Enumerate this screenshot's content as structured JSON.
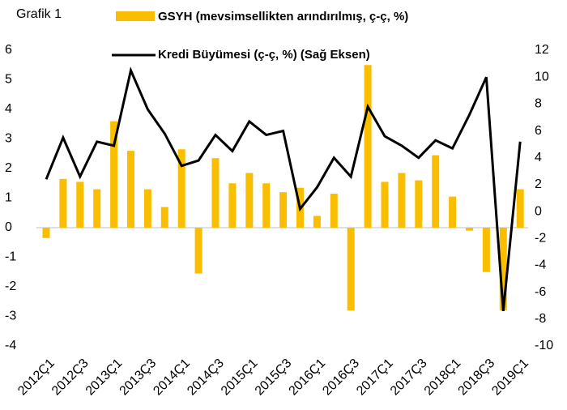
{
  "chart_data": {
    "type": "bar-line",
    "annotation": "Grafik 1",
    "categories": [
      "2012Ç1",
      null,
      "2012Ç3",
      null,
      "2013Ç1",
      null,
      "2013Ç3",
      null,
      "2014Ç1",
      null,
      "2014Ç3",
      null,
      "2015Ç1",
      null,
      "2015Ç3",
      null,
      "2016Ç1",
      null,
      "2016Ç3",
      null,
      "2017Ç1",
      null,
      "2017Ç3",
      null,
      "2018Ç1",
      null,
      "2018Ç3",
      null,
      "2019Ç1"
    ],
    "series": [
      {
        "name": "GSYH (mevsimsellikten arındırılmış, ç-ç, %)",
        "type": "bar",
        "color": "#f9be00",
        "values": [
          -0.35,
          1.65,
          1.55,
          1.3,
          3.6,
          2.6,
          1.3,
          0.7,
          2.65,
          -1.55,
          2.35,
          1.5,
          1.85,
          1.5,
          1.2,
          1.35,
          0.4,
          1.15,
          -2.8,
          5.5,
          1.55,
          1.85,
          1.6,
          2.45,
          1.05,
          -0.1,
          -1.5,
          -2.8,
          1.3
        ]
      },
      {
        "name": "Kredi Büyümesi (ç-ç, %) (Sağ Eksen)",
        "type": "line",
        "axis": "y2",
        "color": "#000000",
        "values": [
          2.4,
          5.5,
          2.6,
          5.2,
          4.9,
          10.5,
          7.6,
          5.8,
          3.4,
          3.8,
          5.7,
          4.5,
          6.7,
          5.7,
          6.0,
          0.2,
          1.8,
          4.0,
          2.6,
          7.8,
          5.6,
          4.9,
          4.0,
          5.3,
          4.7,
          7.2,
          10.0,
          -7.4,
          5.2
        ]
      }
    ],
    "ylim": [
      -4,
      6
    ],
    "yticks": [
      -4,
      -3,
      -2,
      -1,
      0,
      1,
      2,
      3,
      4,
      5,
      6
    ],
    "y2lim": [
      -10,
      12
    ],
    "y2ticks": [
      -10,
      -8,
      -6,
      -4,
      -2,
      0,
      2,
      4,
      6,
      8,
      10,
      12
    ],
    "grid": false
  }
}
